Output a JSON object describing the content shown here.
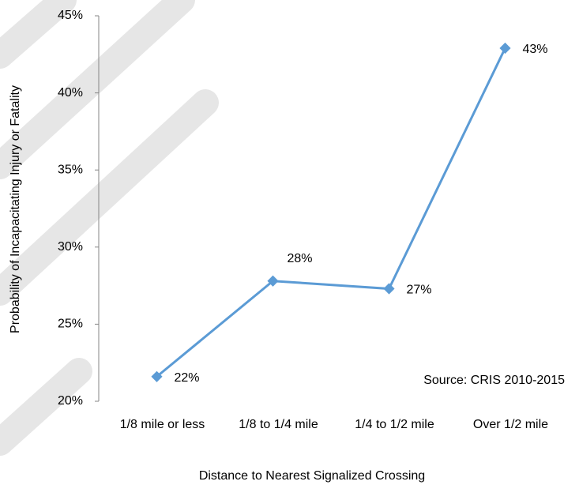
{
  "chart_data": {
    "type": "line",
    "x_label": "Distance to Nearest Signalized Crossing",
    "y_label": "Probability of Incapacitating Injury or Fatality",
    "annotation": "Source: CRIS 2010-2015",
    "categories": [
      "1/8 mile or less",
      "1/8 to 1/4 mile",
      "1/4 to 1/2 mile",
      "Over 1/2 mile"
    ],
    "series": [
      {
        "color": "#5b9bd5",
        "values": [
          21.6,
          27.8,
          27.3,
          42.9
        ],
        "value_labels": [
          "22%",
          "28%",
          "27%",
          "43%"
        ]
      }
    ],
    "ylim": [
      20,
      45
    ],
    "yticks": [
      {
        "value": 20,
        "label": "20%"
      },
      {
        "value": 25,
        "label": "25%"
      },
      {
        "value": 30,
        "label": "30%"
      },
      {
        "value": 35,
        "label": "35%"
      },
      {
        "value": 40,
        "label": "40%"
      },
      {
        "value": 45,
        "label": "45%"
      }
    ]
  }
}
